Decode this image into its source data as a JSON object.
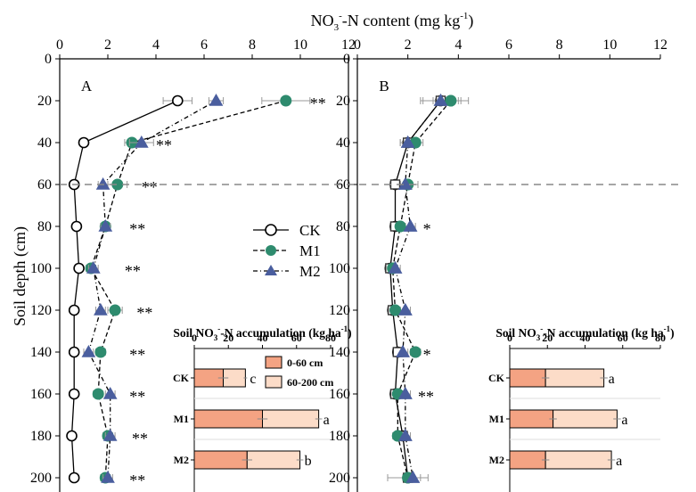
{
  "figure": {
    "x_axis_title": "NO3-N content (mg kg-1)",
    "x_axis_title_main": "NO",
    "x_axis_title_sub": "3",
    "x_axis_title_sup": "-",
    "x_axis_title_rest": "-N content (mg kg",
    "x_axis_title_sup2": "-1",
    "x_axis_title_end": ")",
    "y_axis_title": "Soil depth (cm)",
    "legend": [
      {
        "name": "CK",
        "marker": "circle-open"
      },
      {
        "name": "M1",
        "marker": "circle-green"
      },
      {
        "name": "M2",
        "marker": "triangle-blue"
      }
    ],
    "colors": {
      "m1": "#2e8b6e",
      "m2": "#4a5e9e",
      "bar_0_60": "#f4a383",
      "bar_60_200": "#fcdcc8",
      "reference_line": "#888888"
    }
  },
  "chart_data": [
    {
      "type": "line",
      "panel_label": "A",
      "xlim": [
        0,
        12
      ],
      "ylim": [
        0,
        200
      ],
      "y_reversed": true,
      "x_ticks": [
        "0",
        "2",
        "4",
        "6",
        "8",
        "10",
        "12"
      ],
      "y_ticks": [
        "0",
        "20",
        "40",
        "60",
        "80",
        "100",
        "120",
        "140",
        "160",
        "180",
        "200"
      ],
      "reference_line_depth": 60,
      "depths": [
        20,
        40,
        60,
        80,
        100,
        120,
        140,
        160,
        180,
        200
      ],
      "series": [
        {
          "name": "CK",
          "values": [
            4.9,
            1.0,
            0.6,
            0.7,
            0.8,
            0.6,
            0.6,
            0.6,
            0.5,
            0.6
          ],
          "errors": [
            0.6,
            0.15,
            0.1,
            0.1,
            0.1,
            0.1,
            0.1,
            0.1,
            0.1,
            0.1
          ]
        },
        {
          "name": "M1",
          "values": [
            9.4,
            3.0,
            2.4,
            1.9,
            1.3,
            2.3,
            1.7,
            1.6,
            2.0,
            1.9
          ],
          "errors": [
            1.0,
            0.3,
            0.4,
            0.2,
            0.2,
            0.3,
            0.2,
            0.2,
            0.2,
            0.2
          ]
        },
        {
          "name": "M2",
          "values": [
            6.5,
            3.4,
            1.8,
            1.9,
            1.4,
            1.7,
            1.2,
            2.1,
            2.1,
            2.0
          ],
          "errors": [
            0.3,
            0.5,
            0.2,
            0.2,
            0.2,
            0.2,
            0.2,
            0.2,
            0.2,
            0.2
          ]
        }
      ],
      "significance": [
        {
          "depth": 20,
          "label": "**"
        },
        {
          "depth": 40,
          "label": "**"
        },
        {
          "depth": 60,
          "label": "**"
        },
        {
          "depth": 80,
          "label": "**"
        },
        {
          "depth": 100,
          "label": "**"
        },
        {
          "depth": 120,
          "label": "**"
        },
        {
          "depth": 140,
          "label": "**"
        },
        {
          "depth": 160,
          "label": "**"
        },
        {
          "depth": 180,
          "label": "**"
        },
        {
          "depth": 200,
          "label": "**"
        }
      ],
      "sig_x": [
        10.4,
        4.0,
        3.4,
        2.9,
        2.7,
        3.2,
        2.9,
        2.9,
        3.0,
        2.9
      ],
      "inset": {
        "type": "bar",
        "title_main": "Soil NO",
        "title_sub": "3",
        "title_sup": "-",
        "title_rest": "-N accumulation (kg ha",
        "title_sup2": "-1",
        "title_end": ")",
        "xlim": [
          0,
          80
        ],
        "x_ticks": [
          "0",
          "20",
          "40",
          "60",
          "80"
        ],
        "categories": [
          "CK",
          "M1",
          "M2"
        ],
        "stack_legend": [
          "0-60 cm",
          "60-200 cm"
        ],
        "series": [
          {
            "name": "0-60 cm",
            "values": [
              17,
              40,
              31
            ],
            "errors": [
              3,
              3,
              3
            ]
          },
          {
            "name": "60-200 cm",
            "values": [
              13,
              33,
              31
            ],
            "errors": [
              1,
              2,
              2
            ]
          }
        ],
        "letters": [
          "c",
          "a",
          "b"
        ]
      }
    },
    {
      "type": "line",
      "panel_label": "B",
      "xlim": [
        0,
        12
      ],
      "ylim": [
        0,
        200
      ],
      "y_reversed": true,
      "x_ticks": [
        "0",
        "2",
        "4",
        "6",
        "8",
        "10",
        "12"
      ],
      "reference_line_depth": 60,
      "depths": [
        20,
        40,
        60,
        80,
        100,
        120,
        140,
        160,
        180,
        200
      ],
      "series": [
        {
          "name": "CK",
          "values": [
            3.3,
            2.0,
            1.5,
            1.5,
            1.3,
            1.4,
            1.6,
            1.5,
            1.8,
            2.0
          ],
          "errors": [
            0.8,
            0.3,
            0.2,
            0.2,
            0.2,
            0.2,
            0.2,
            0.2,
            0.2,
            0.2
          ]
        },
        {
          "name": "M1",
          "values": [
            3.7,
            2.3,
            2.0,
            1.7,
            1.4,
            1.5,
            2.3,
            1.6,
            1.6,
            2.0
          ],
          "errors": [
            0.7,
            0.3,
            0.4,
            0.2,
            0.2,
            0.2,
            0.2,
            0.2,
            0.2,
            0.8
          ]
        },
        {
          "name": "M2",
          "values": [
            3.3,
            2.0,
            1.9,
            2.1,
            1.5,
            1.9,
            1.8,
            1.9,
            1.9,
            2.2
          ],
          "errors": [
            0.7,
            0.3,
            0.2,
            0.2,
            0.2,
            0.2,
            0.2,
            0.2,
            0.2,
            0.3
          ]
        }
      ],
      "significance": [
        {
          "depth": 80,
          "label": "*"
        },
        {
          "depth": 140,
          "label": "*"
        },
        {
          "depth": 160,
          "label": "**"
        }
      ],
      "sig_x": [
        2.6,
        2.6,
        2.4
      ],
      "inset": {
        "type": "bar",
        "title_main": "Soil NO",
        "title_sub": "3",
        "title_sup": "-",
        "title_rest": "-N accumulation (kg ha",
        "title_sup2": "-1",
        "title_end": ")",
        "xlim": [
          0,
          80
        ],
        "x_ticks": [
          "0",
          "20",
          "40",
          "60",
          "80"
        ],
        "categories": [
          "CK",
          "M1",
          "M2"
        ],
        "series": [
          {
            "name": "0-60 cm",
            "values": [
              19,
              23,
              19
            ],
            "errors": [
              2,
              2,
              2
            ]
          },
          {
            "name": "60-200 cm",
            "values": [
              31,
              34,
              35
            ],
            "errors": [
              2,
              2,
              2
            ]
          }
        ],
        "letters": [
          "a",
          "a",
          "a"
        ]
      }
    }
  ]
}
